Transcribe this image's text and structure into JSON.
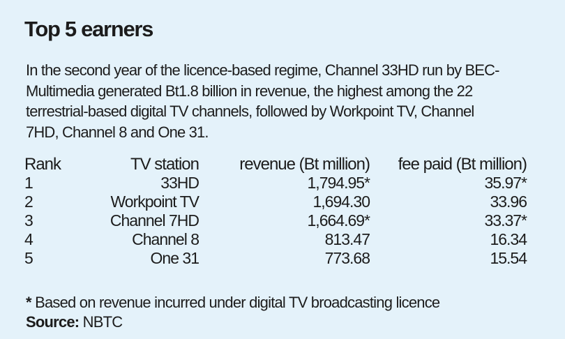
{
  "title": "Top 5 earners",
  "intro_lines": [
    "In the second year of the licence-based regime, Channel 33HD run by BEC-",
    "Multimedia generated Bt1.8 billion in revenue, the highest among the 22",
    "terrestrial-based digital TV channels, followed by Workpoint TV, Channel",
    "7HD, Channel 8 and One 31."
  ],
  "chart_data": {
    "type": "table",
    "title": "Top 5 earners",
    "columns": [
      "Rank",
      "TV station",
      "revenue (Bt million)",
      "fee paid (Bt million)"
    ],
    "rows": [
      [
        "1",
        "33HD",
        "1,794.95*",
        "35.97*"
      ],
      [
        "2",
        "Workpoint TV",
        "1,694.30",
        "33.96"
      ],
      [
        "3",
        "Channel 7HD",
        "1,664.69*",
        "33.37*"
      ],
      [
        "4",
        "Channel 8",
        "813.47",
        "16.34"
      ],
      [
        "5",
        "One 31",
        "773.68",
        "15.54"
      ]
    ]
  },
  "footnote": {
    "mark": "*",
    "text": " Based on revenue incurred under digital TV broadcasting licence"
  },
  "source": {
    "label": "Source:",
    "text": " NBTC"
  }
}
